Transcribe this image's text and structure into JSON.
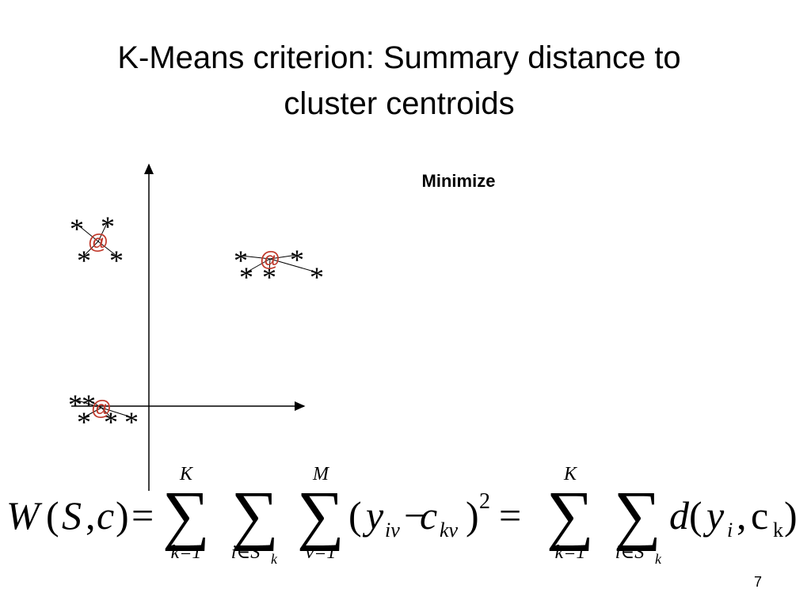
{
  "title": {
    "lines": [
      "K-Means  criterion: Summary distance to",
      "cluster centroids"
    ]
  },
  "label": "Minimize",
  "page_number": "7",
  "scatter": {
    "clusters": [
      {
        "centroid": "@",
        "points": [
          "*",
          "*",
          "*",
          "*"
        ]
      },
      {
        "centroid": "@",
        "points": [
          "*",
          "*",
          "*",
          "*",
          "*"
        ]
      },
      {
        "centroid": "@",
        "points": [
          "*",
          "*",
          "*",
          "*",
          "*"
        ]
      }
    ]
  },
  "formula": {
    "tokens": [
      "W",
      "(",
      "S",
      ",",
      "c",
      ")",
      "=",
      "∑",
      "K",
      "k=1",
      "∑",
      "i∈S",
      "k",
      "∑",
      "M",
      "v=1",
      "(",
      "y",
      "iv",
      "−",
      "c",
      "kv",
      ")",
      "2",
      "=",
      "∑",
      "K",
      "k=1",
      "∑",
      "i∈S",
      "k",
      "d",
      "(",
      "y",
      "i",
      ",",
      "c",
      "k",
      ")"
    ]
  }
}
